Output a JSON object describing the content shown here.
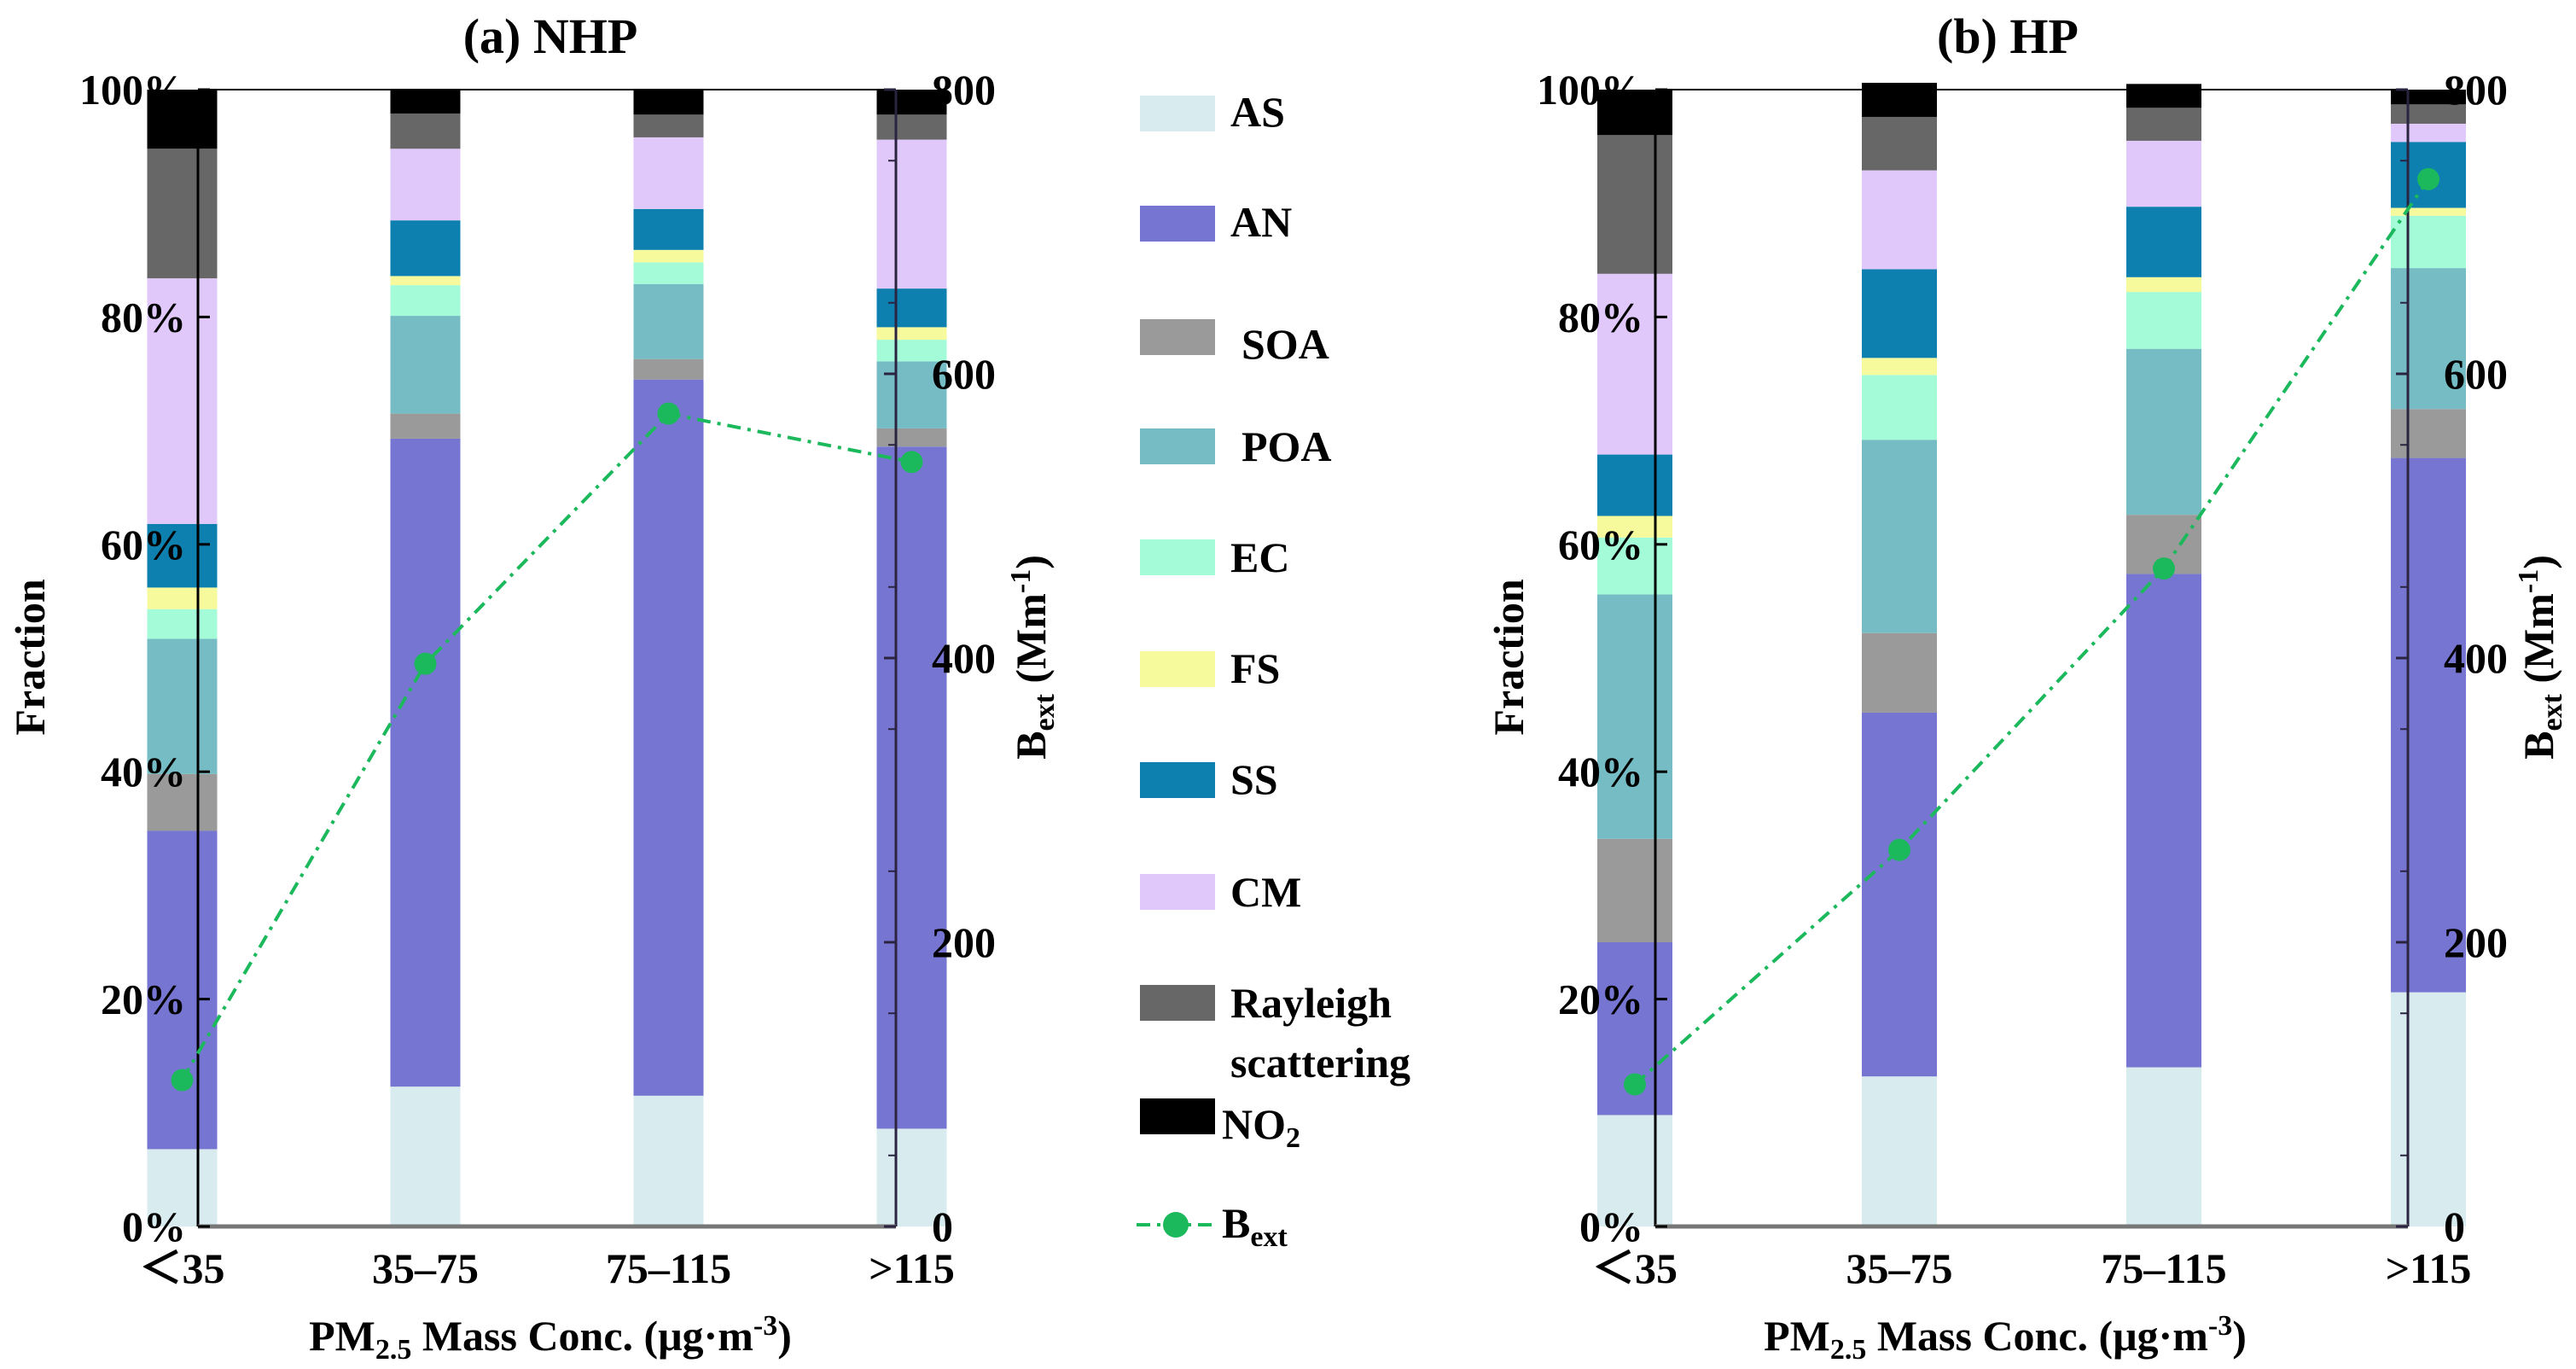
{
  "figure": {
    "components": [
      "AS",
      "AN",
      "SOA",
      "POA",
      "EC",
      "FS",
      "SS",
      "CM",
      "Rayleigh scattering",
      "NO2"
    ],
    "colors": {
      "AS": "#d8ebef",
      "AN": "#7676d2",
      "SOA": "#9a9a9a",
      "POA": "#76bcc4",
      "EC": "#a4fbd8",
      "FS": "#f6fa9c",
      "SS": "#0d80b0",
      "CM": "#e1c8fa",
      "Rayleigh scattering": "#676767",
      "NO2": "#000000",
      "Bext": "#1cb85c"
    },
    "legend": {
      "labels": [
        "AS",
        "AN",
        "SOA",
        "POA",
        "EC",
        "FS",
        "SS",
        "CM",
        "Rayleigh",
        "scattering",
        "NO",
        "2",
        "B",
        "ext"
      ]
    }
  },
  "chart_data": [
    {
      "type": "bar",
      "stacked": true,
      "title": "(a) NHP",
      "xlabel": {
        "pre": "PM",
        "sub": "2.5",
        "mid": " Mass Conc. (μg·m",
        "sup": "-3",
        "post": ")"
      },
      "ylabel": "Fraction",
      "y2label": {
        "main": "B",
        "sub": "ext",
        "mid": " (Mm",
        "sup": "-1",
        "post": ")"
      },
      "categories": [
        "＜35",
        "35–75",
        "75–115",
        ">115"
      ],
      "ylim": [
        0,
        100
      ],
      "y_ticks": [
        "0%",
        "20%",
        "40%",
        "60%",
        "80%",
        "100%"
      ],
      "y2lim": [
        0,
        800
      ],
      "y2_ticks": [
        "0",
        "200",
        "400",
        "600",
        "800"
      ],
      "series": [
        {
          "name": "AS",
          "values": [
            6.8,
            12.3,
            11.5,
            8.6
          ]
        },
        {
          "name": "AN",
          "values": [
            28.0,
            57.0,
            63.0,
            60.0
          ]
        },
        {
          "name": "SOA",
          "values": [
            5.0,
            2.2,
            1.8,
            1.6
          ]
        },
        {
          "name": "POA",
          "values": [
            11.9,
            8.6,
            6.6,
            5.9
          ]
        },
        {
          "name": "EC",
          "values": [
            2.6,
            2.7,
            1.9,
            1.9
          ]
        },
        {
          "name": "FS",
          "values": [
            1.9,
            0.8,
            1.1,
            1.1
          ]
        },
        {
          "name": "SS",
          "values": [
            5.6,
            4.9,
            3.6,
            3.4
          ]
        },
        {
          "name": "CM",
          "values": [
            21.6,
            6.3,
            6.3,
            13.1
          ]
        },
        {
          "name": "Rayleigh scattering",
          "values": [
            11.4,
            3.1,
            2.0,
            2.2
          ]
        },
        {
          "name": "NO2",
          "values": [
            5.2,
            2.1,
            2.2,
            2.2
          ]
        }
      ],
      "line": {
        "name": "Bext",
        "axis": "secondary",
        "values": [
          103,
          396,
          572,
          538
        ]
      }
    },
    {
      "type": "bar",
      "stacked": true,
      "title": "(b) HP",
      "xlabel": {
        "pre": "PM",
        "sub": "2.5",
        "mid": " Mass Conc. (μg·m",
        "sup": "-3",
        "post": ")"
      },
      "ylabel": "Fraction",
      "y2label": {
        "main": "B",
        "sub": "ext",
        "mid": " (Mm",
        "sup": "-1",
        "post": ")"
      },
      "categories": [
        "＜35",
        "35–75",
        "75–115",
        ">115"
      ],
      "ylim": [
        0,
        100
      ],
      "y_ticks": [
        "0%",
        "20%",
        "40%",
        "60%",
        "80%",
        "100%"
      ],
      "y2lim": [
        0,
        800
      ],
      "y2_ticks": [
        "0",
        "200",
        "400",
        "600",
        "800"
      ],
      "series": [
        {
          "name": "AS",
          "values": [
            9.8,
            13.2,
            14.0,
            20.6
          ]
        },
        {
          "name": "AN",
          "values": [
            15.2,
            32.0,
            43.4,
            47.0
          ]
        },
        {
          "name": "SOA",
          "values": [
            9.1,
            7.0,
            5.2,
            4.3
          ]
        },
        {
          "name": "POA",
          "values": [
            21.5,
            17.0,
            14.6,
            12.4
          ]
        },
        {
          "name": "EC",
          "values": [
            5.0,
            5.7,
            5.0,
            4.6
          ]
        },
        {
          "name": "FS",
          "values": [
            1.9,
            1.5,
            1.3,
            0.7
          ]
        },
        {
          "name": "SS",
          "values": [
            5.4,
            7.8,
            6.2,
            5.8
          ]
        },
        {
          "name": "CM",
          "values": [
            15.9,
            8.7,
            5.8,
            1.6
          ]
        },
        {
          "name": "Rayleigh scattering",
          "values": [
            12.2,
            4.7,
            2.9,
            1.7
          ]
        },
        {
          "name": "NO2",
          "values": [
            4.0,
            3.0,
            2.1,
            1.3
          ]
        }
      ],
      "line": {
        "name": "Bext",
        "axis": "secondary",
        "values": [
          100,
          265,
          463,
          737
        ]
      }
    }
  ]
}
